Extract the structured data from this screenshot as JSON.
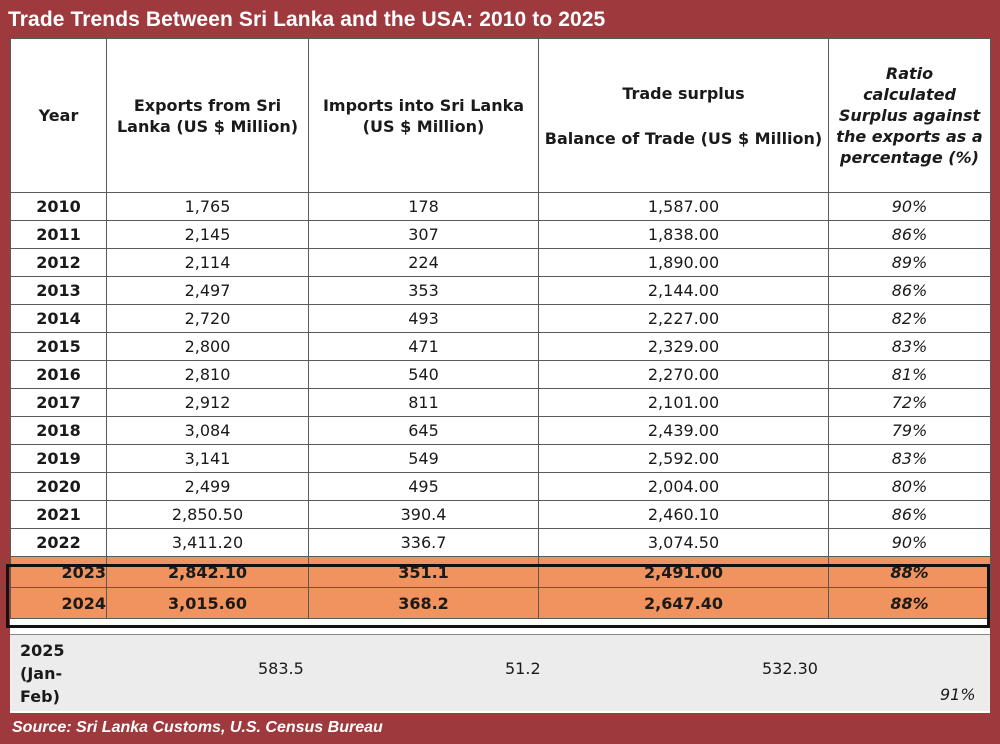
{
  "title": "Trade Trends Between Sri Lanka and the USA: 2010 to 2025",
  "source": "Source: Sri Lanka Customs, U.S. Census Bureau",
  "headers": {
    "year": "Year",
    "exports": "Exports from Sri Lanka (US $ Million)",
    "imports": "Imports into Sri Lanka (US $ Million)",
    "balance_top": "Trade surplus",
    "balance": "Balance of Trade (US $ Million)",
    "ratio_top": "Ratio",
    "ratio": "calculated Surplus against the exports as a percentage (%)"
  },
  "rows": [
    {
      "year": "2010",
      "exports": "1,765",
      "imports": "178",
      "balance": "1,587.00",
      "ratio": "90%"
    },
    {
      "year": "2011",
      "exports": "2,145",
      "imports": "307",
      "balance": "1,838.00",
      "ratio": "86%"
    },
    {
      "year": "2012",
      "exports": "2,114",
      "imports": "224",
      "balance": "1,890.00",
      "ratio": "89%"
    },
    {
      "year": "2013",
      "exports": "2,497",
      "imports": "353",
      "balance": "2,144.00",
      "ratio": "86%"
    },
    {
      "year": "2014",
      "exports": "2,720",
      "imports": "493",
      "balance": "2,227.00",
      "ratio": "82%"
    },
    {
      "year": "2015",
      "exports": "2,800",
      "imports": "471",
      "balance": "2,329.00",
      "ratio": "83%"
    },
    {
      "year": "2016",
      "exports": "2,810",
      "imports": "540",
      "balance": "2,270.00",
      "ratio": "81%"
    },
    {
      "year": "2017",
      "exports": "2,912",
      "imports": "811",
      "balance": "2,101.00",
      "ratio": "72%"
    },
    {
      "year": "2018",
      "exports": "3,084",
      "imports": "645",
      "balance": "2,439.00",
      "ratio": "79%"
    },
    {
      "year": "2019",
      "exports": "3,141",
      "imports": "549",
      "balance": "2,592.00",
      "ratio": "83%"
    },
    {
      "year": "2020",
      "exports": "2,499",
      "imports": "495",
      "balance": "2,004.00",
      "ratio": "80%"
    },
    {
      "year": "2021",
      "exports": "2,850.50",
      "imports": "390.4",
      "balance": "2,460.10",
      "ratio": "86%"
    },
    {
      "year": "2022",
      "exports": "3,411.20",
      "imports": "336.7",
      "balance": "3,074.50",
      "ratio": "90%"
    }
  ],
  "highlight_rows": [
    {
      "year": "2023",
      "exports": "2,842.10",
      "imports": "351.1",
      "balance": "2,491.00",
      "ratio": "88%"
    },
    {
      "year": "2024",
      "exports": "3,015.60",
      "imports": "368.2",
      "balance": "2,647.40",
      "ratio": "88%"
    }
  ],
  "last_row": {
    "year_lines": [
      "2025",
      "(Jan-",
      "Feb)"
    ],
    "exports": "583.5",
    "imports": "51.2",
    "balance": "532.30",
    "ratio": "91%"
  },
  "colors": {
    "frame": "#9e3a3e",
    "highlight": "#f0935e",
    "last_row_bg": "#ececec"
  },
  "chart_data": {
    "type": "table",
    "title": "Trade Trends Between Sri Lanka and the USA: 2010 to 2025",
    "columns": [
      "Year",
      "Exports from Sri Lanka (US $ Million)",
      "Imports into Sri Lanka (US $ Million)",
      "Trade surplus Balance of Trade (US $ Million)",
      "Ratio calculated Surplus against the exports as a percentage (%)"
    ],
    "x": [
      "2010",
      "2011",
      "2012",
      "2013",
      "2014",
      "2015",
      "2016",
      "2017",
      "2018",
      "2019",
      "2020",
      "2021",
      "2022",
      "2023",
      "2024",
      "2025 (Jan-Feb)"
    ],
    "series": [
      {
        "name": "Exports from Sri Lanka (US $ Million)",
        "values": [
          1765,
          2145,
          2114,
          2497,
          2720,
          2800,
          2810,
          2912,
          3084,
          3141,
          2499,
          2850.5,
          3411.2,
          2842.1,
          3015.6,
          583.5
        ]
      },
      {
        "name": "Imports into Sri Lanka (US $ Million)",
        "values": [
          178,
          307,
          224,
          353,
          493,
          471,
          540,
          811,
          645,
          549,
          495,
          390.4,
          336.7,
          351.1,
          368.2,
          51.2
        ]
      },
      {
        "name": "Balance of Trade (US $ Million)",
        "values": [
          1587,
          1838,
          1890,
          2144,
          2227,
          2329,
          2270,
          2101,
          2439,
          2592,
          2004,
          2460.1,
          3074.5,
          2491,
          2647.4,
          532.3
        ]
      },
      {
        "name": "Ratio (%)",
        "values": [
          90,
          86,
          89,
          86,
          82,
          83,
          81,
          72,
          79,
          83,
          80,
          86,
          90,
          88,
          88,
          91
        ]
      }
    ]
  }
}
